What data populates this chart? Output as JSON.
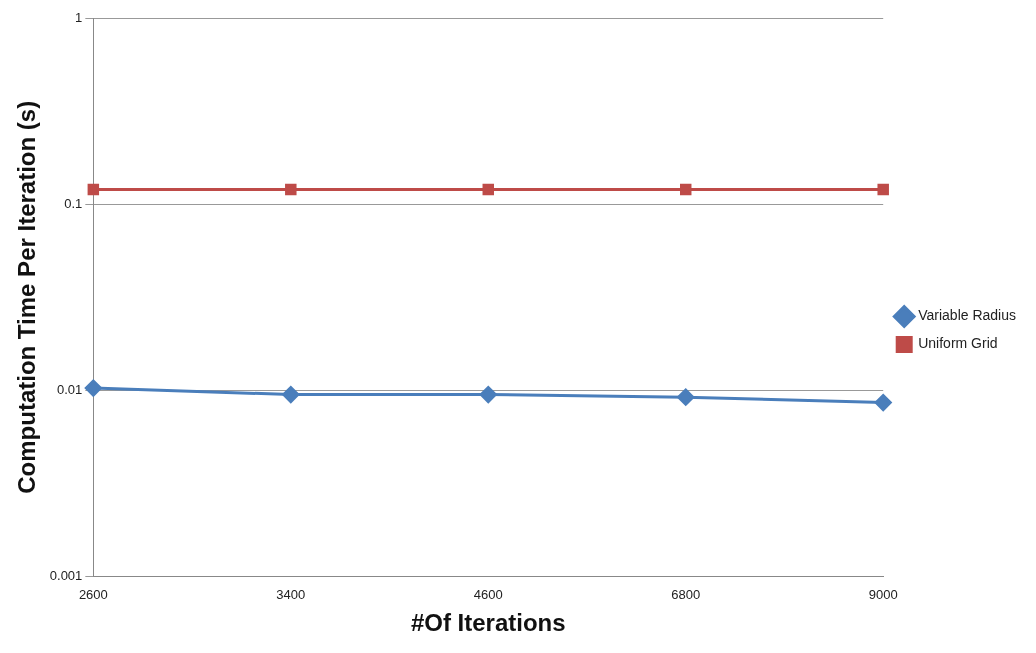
{
  "chart_data": {
    "type": "line",
    "xlabel": "#Of Iterations",
    "ylabel": "Computation Time Per Iteration (s)",
    "categories": [
      "2600",
      "3400",
      "4600",
      "6800",
      "9000"
    ],
    "series": [
      {
        "name": "Variable Radius",
        "color": "#4a7ebb",
        "marker": "diamond",
        "values": [
          0.0103,
          0.0095,
          0.0095,
          0.0092,
          0.0086
        ]
      },
      {
        "name": "Uniform Grid",
        "color": "#be4b48",
        "marker": "square",
        "values": [
          0.12,
          0.12,
          0.12,
          0.12,
          0.12
        ]
      }
    ],
    "log": "y",
    "ylim": [
      0.001,
      1
    ],
    "yticks": [
      0.001,
      0.01,
      0.1,
      1
    ],
    "grid": "y",
    "legend": "right"
  }
}
